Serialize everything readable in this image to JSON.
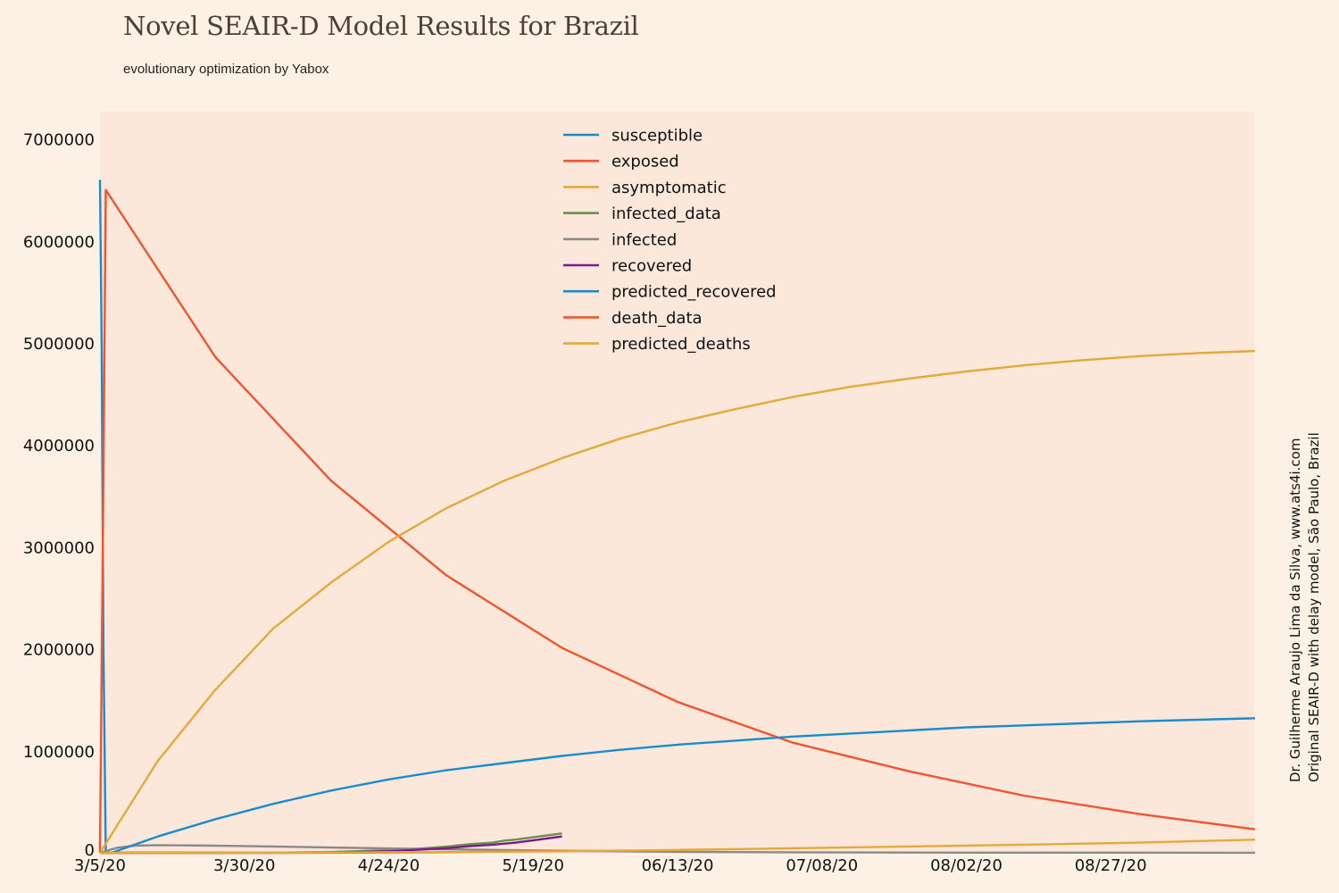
{
  "chart_data": {
    "type": "line",
    "title": "Novel SEAIR-D Model Results for Brazil",
    "subtitle": "evolutionary optimization by Yabox",
    "xlabel": "",
    "ylabel": "",
    "x_range_days": [
      0,
      200
    ],
    "ylim": [
      0,
      7300000
    ],
    "x_ticks": [
      {
        "day": 0,
        "label": "3/5/20"
      },
      {
        "day": 25,
        "label": "3/30/20"
      },
      {
        "day": 50,
        "label": "4/24/20"
      },
      {
        "day": 75,
        "label": "5/19/20"
      },
      {
        "day": 100,
        "label": "06/13/20"
      },
      {
        "day": 125,
        "label": "07/08/20"
      },
      {
        "day": 150,
        "label": "08/02/20"
      },
      {
        "day": 175,
        "label": "08/27/20"
      }
    ],
    "y_ticks": [
      {
        "value": 0,
        "label": "0"
      },
      {
        "value": 1000000,
        "label": "1000000"
      },
      {
        "value": 2000000,
        "label": "2000000"
      },
      {
        "value": 3000000,
        "label": "3000000"
      },
      {
        "value": 4000000,
        "label": "4000000"
      },
      {
        "value": 5000000,
        "label": "5000000"
      },
      {
        "value": 6000000,
        "label": "6000000"
      },
      {
        "value": 7000000,
        "label": "7000000"
      }
    ],
    "grid": false,
    "legend_position": "top-center",
    "series": [
      {
        "name": "susceptible",
        "color": "#1a8ccc",
        "x": [
          0,
          0.3,
          0.6,
          1,
          2
        ],
        "y": [
          6600000,
          5000000,
          2000000,
          0,
          0
        ]
      },
      {
        "name": "exposed",
        "color": "#f2542d",
        "x": [
          0,
          0.5,
          1,
          20,
          40,
          60,
          80,
          100,
          120,
          140,
          160,
          180,
          200
        ],
        "y": [
          0,
          3000000,
          6500000,
          4860000,
          3650000,
          2720000,
          2010000,
          1480000,
          1080000,
          800000,
          560000,
          380000,
          230000
        ]
      },
      {
        "name": "asymptomatic",
        "color": "#e5a93a",
        "x": [
          0,
          10,
          20,
          30,
          40,
          50,
          60,
          70,
          80,
          90,
          100,
          110,
          120,
          130,
          140,
          150,
          160,
          170,
          180,
          190,
          200
        ],
        "y": [
          0,
          900000,
          1600000,
          2200000,
          2650000,
          3050000,
          3380000,
          3650000,
          3870000,
          4060000,
          4220000,
          4350000,
          4470000,
          4570000,
          4650000,
          4720000,
          4780000,
          4830000,
          4870000,
          4900000,
          4920000
        ]
      },
      {
        "name": "infected_data",
        "color": "#6a8f4e",
        "x": [
          0,
          20,
          30,
          40,
          50,
          55,
          60,
          64,
          68,
          70,
          72,
          74,
          76,
          78,
          80
        ],
        "y": [
          0,
          300,
          2000,
          8000,
          25000,
          40000,
          60000,
          85000,
          100000,
          120000,
          130000,
          145000,
          160000,
          175000,
          190000
        ]
      },
      {
        "name": "infected",
        "color": "#8a8a8a",
        "x": [
          0,
          3,
          6,
          10,
          15,
          20,
          30,
          40,
          50,
          60,
          70,
          80,
          100,
          120,
          150,
          200
        ],
        "y": [
          0,
          50000,
          70000,
          75000,
          73000,
          70000,
          62000,
          52000,
          43000,
          35000,
          27000,
          20000,
          10000,
          5000,
          2000,
          800
        ]
      },
      {
        "name": "recovered",
        "color": "#7a1a8a",
        "x": [
          0,
          30,
          40,
          50,
          55,
          60,
          64,
          68,
          72,
          76,
          80
        ],
        "y": [
          0,
          500,
          3000,
          15000,
          30000,
          45000,
          65000,
          80000,
          100000,
          130000,
          160000
        ]
      },
      {
        "name": "predicted_recovered",
        "color": "#1a8ccc",
        "x": [
          0,
          2,
          10,
          20,
          30,
          40,
          50,
          60,
          70,
          80,
          90,
          100,
          110,
          120,
          130,
          140,
          150,
          160,
          170,
          180,
          190,
          200
        ],
        "y": [
          0,
          0,
          160000,
          330000,
          480000,
          610000,
          720000,
          810000,
          880000,
          950000,
          1010000,
          1060000,
          1100000,
          1140000,
          1170000,
          1200000,
          1230000,
          1250000,
          1270000,
          1290000,
          1305000,
          1320000
        ]
      },
      {
        "name": "death_data",
        "color": "#f2542d",
        "x": [
          0,
          20,
          40,
          50,
          60,
          70,
          80
        ],
        "y": [
          0,
          50,
          1000,
          3000,
          6000,
          11000,
          18000
        ]
      },
      {
        "name": "predicted_deaths",
        "color": "#e5a93a",
        "x": [
          0,
          20,
          40,
          60,
          80,
          100,
          120,
          140,
          160,
          180,
          200
        ],
        "y": [
          0,
          1000,
          3500,
          8000,
          15000,
          28000,
          45000,
          62000,
          80000,
          100000,
          130000
        ]
      }
    ]
  },
  "credit": {
    "line1": "Dr. Guilherme Araujo Lima da Silva, www.ats4i.com",
    "line2": "Original SEAIR-D with delay model, São Paulo, Brazil"
  }
}
